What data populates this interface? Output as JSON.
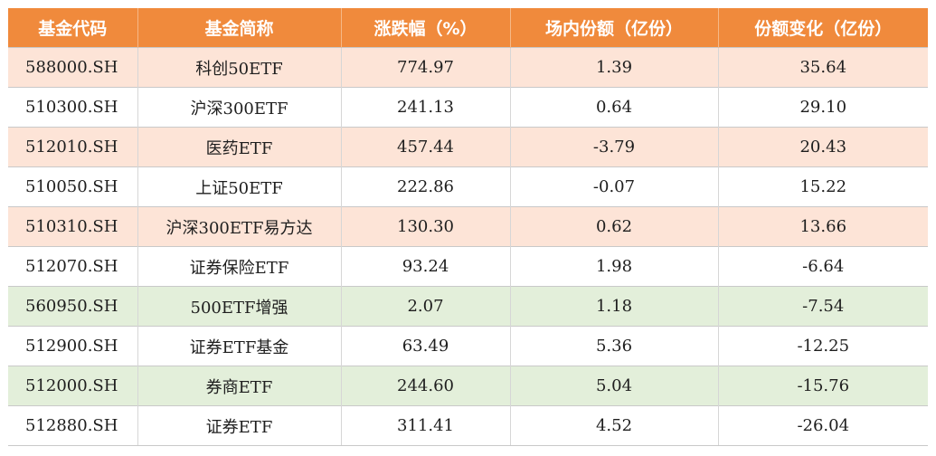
{
  "table": {
    "headers": [
      "基金代码",
      "基金简称",
      "涨跌幅（%）",
      "场内份额（亿份）",
      "份额变化（亿份）"
    ],
    "rows": [
      {
        "style": "orange",
        "cells": [
          "588000.SH",
          "科创50ETF",
          "774.97",
          "1.39",
          "35.64"
        ]
      },
      {
        "style": "plain",
        "cells": [
          "510300.SH",
          "沪深300ETF",
          "241.13",
          "0.64",
          "29.10"
        ]
      },
      {
        "style": "orange",
        "cells": [
          "512010.SH",
          "医药ETF",
          "457.44",
          "-3.79",
          "20.43"
        ]
      },
      {
        "style": "plain",
        "cells": [
          "510050.SH",
          "上证50ETF",
          "222.86",
          "-0.07",
          "15.22"
        ]
      },
      {
        "style": "orange",
        "cells": [
          "510310.SH",
          "沪深300ETF易方达",
          "130.30",
          "0.62",
          "13.66"
        ]
      },
      {
        "style": "plain",
        "cells": [
          "512070.SH",
          "证券保险ETF",
          "93.24",
          "1.98",
          "-6.64"
        ]
      },
      {
        "style": "green",
        "cells": [
          "560950.SH",
          "500ETF增强",
          "2.07",
          "1.18",
          "-7.54"
        ]
      },
      {
        "style": "plain",
        "cells": [
          "512900.SH",
          "证券ETF基金",
          "63.49",
          "5.36",
          "-12.25"
        ]
      },
      {
        "style": "green",
        "cells": [
          "512000.SH",
          "券商ETF",
          "244.60",
          "5.04",
          "-15.76"
        ]
      },
      {
        "style": "plain",
        "cells": [
          "512880.SH",
          "证券ETF",
          "311.41",
          "4.52",
          "-26.04"
        ]
      }
    ]
  },
  "colors": {
    "header_bg": "#f08a3c",
    "row_orange": "#fde4d7",
    "row_green": "#e3efda",
    "row_plain": "#ffffff"
  }
}
